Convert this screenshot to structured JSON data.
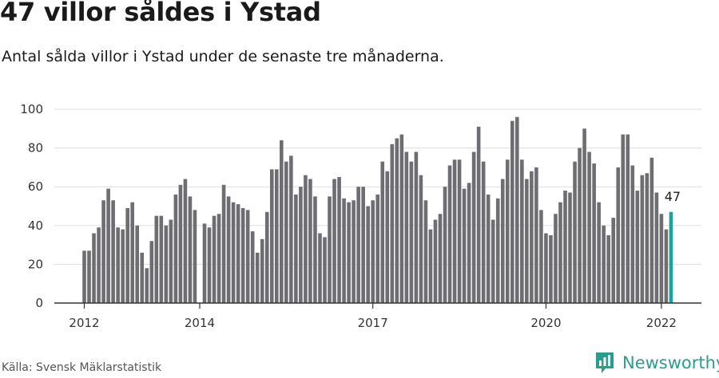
{
  "header": {
    "title": "47 villor såldes i Ystad",
    "subtitle": "Antal sålda villor i Ystad under de senaste tre månaderna."
  },
  "footer": {
    "source": "Källa: Svensk Mäklarstatistik",
    "brand": "Newsworthy"
  },
  "colors": {
    "bar": "#6e6d72",
    "highlight": "#1aa39a",
    "grid": "#dddddd",
    "axis": "#333333",
    "brand": "#2a9d8f"
  },
  "icons": {
    "brand": "newsworthy-logo-icon"
  },
  "chart_data": {
    "type": "bar",
    "title": "",
    "xlabel": "",
    "ylabel": "",
    "ylim": [
      0,
      100
    ],
    "yticks": [
      0,
      20,
      40,
      60,
      80,
      100
    ],
    "grid": true,
    "x_start": "2012-01",
    "xtick_labels": [
      {
        "label": "2012",
        "month": "2012-01"
      },
      {
        "label": "2014",
        "month": "2014-01"
      },
      {
        "label": "2017",
        "month": "2017-01"
      },
      {
        "label": "2020",
        "month": "2020-01"
      },
      {
        "label": "2022",
        "month": "2022-01"
      }
    ],
    "values": [
      27,
      27,
      36,
      39,
      53,
      59,
      53,
      39,
      38,
      49,
      52,
      40,
      26,
      18,
      32,
      45,
      45,
      40,
      43,
      56,
      61,
      64,
      55,
      48,
      null,
      41,
      39,
      45,
      46,
      61,
      55,
      52,
      51,
      49,
      48,
      37,
      26,
      33,
      47,
      69,
      69,
      84,
      73,
      76,
      56,
      60,
      66,
      64,
      55,
      36,
      34,
      55,
      64,
      65,
      54,
      52,
      53,
      60,
      60,
      50,
      53,
      56,
      73,
      68,
      82,
      85,
      87,
      78,
      73,
      78,
      66,
      53,
      38,
      43,
      46,
      60,
      71,
      74,
      74,
      59,
      62,
      78,
      91,
      73,
      56,
      43,
      54,
      64,
      74,
      94,
      96,
      74,
      64,
      68,
      70,
      48,
      36,
      35,
      46,
      52,
      58,
      57,
      73,
      80,
      90,
      78,
      72,
      52,
      40,
      35,
      44,
      70,
      87,
      87,
      71,
      58,
      66,
      67,
      75,
      57,
      46,
      38,
      47
    ],
    "highlight_last": true,
    "data_labels": [
      {
        "value": 47,
        "text": "47"
      }
    ]
  }
}
